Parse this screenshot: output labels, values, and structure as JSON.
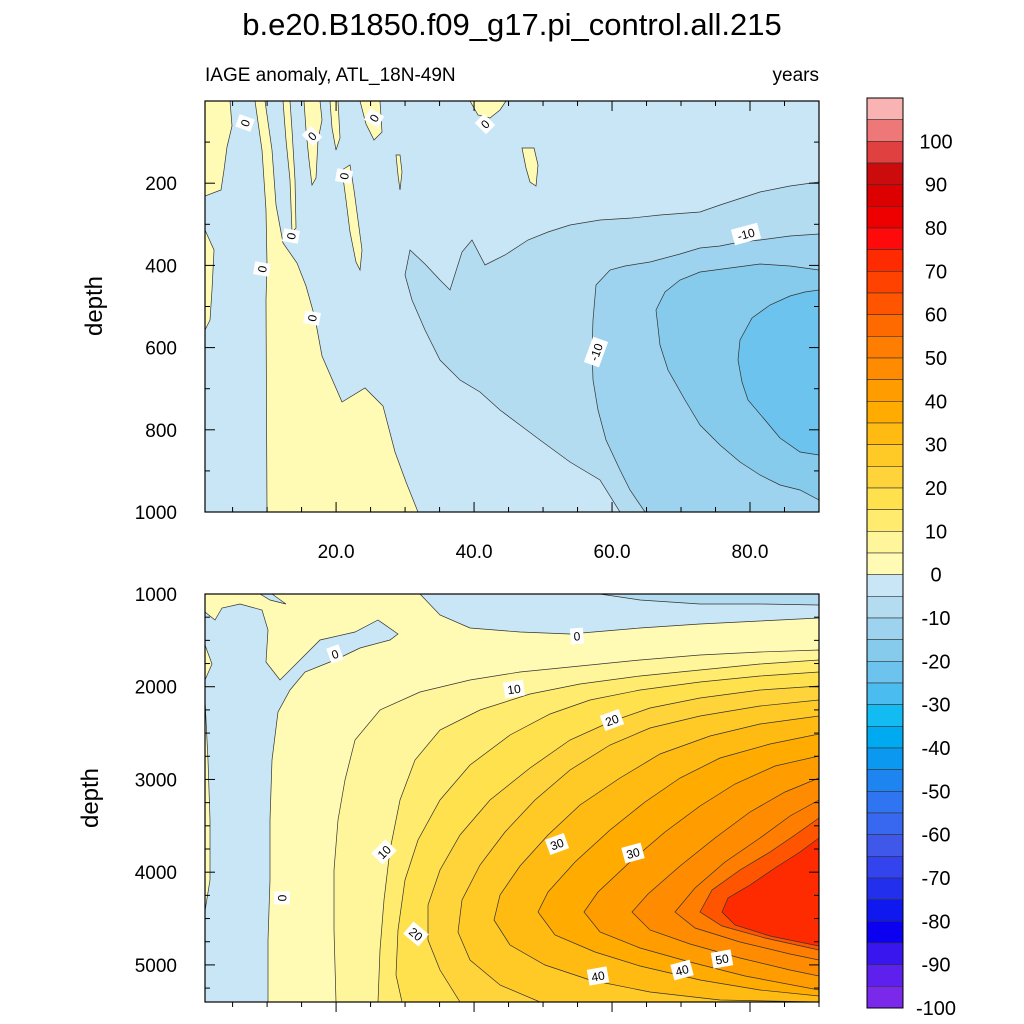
{
  "chart_data": {
    "title": "b.e20.B1850.f09_g17.pi_control.all.215",
    "subtitle_left": "IAGE anomaly, ATL_18N-49N",
    "subtitle_right": "years",
    "type": "contour",
    "x_tick_labels": [
      "20.0",
      "40.0",
      "60.0",
      "80.0"
    ],
    "xlim": [
      1,
      90
    ],
    "panels": [
      {
        "id": "upper",
        "ylabel": "depth",
        "ylim": [
          0,
          1000
        ],
        "y_inverted": true,
        "y_tick_labels": [
          "200",
          "400",
          "600",
          "800",
          "1000"
        ],
        "contour_labels": [
          "0",
          "0",
          "0",
          "0",
          "0",
          "0",
          "0",
          "0",
          "-10",
          "-10"
        ]
      },
      {
        "id": "lower",
        "ylabel": "depth",
        "ylim": [
          1000,
          5400
        ],
        "y_inverted": true,
        "y_tick_labels": [
          "1000",
          "2000",
          "3000",
          "4000",
          "5000"
        ],
        "contour_labels": [
          "0",
          "0",
          "0",
          "10",
          "10",
          "20",
          "20",
          "30",
          "30",
          "40",
          "40",
          "50"
        ]
      }
    ],
    "colorbar": {
      "labels": [
        "100",
        "90",
        "80",
        "70",
        "60",
        "50",
        "40",
        "30",
        "20",
        "10",
        "0",
        "-10",
        "-20",
        "-30",
        "-40",
        "-50",
        "-60",
        "-70",
        "-80",
        "-90",
        "-100"
      ],
      "colors": [
        "#f9b3b3",
        "#ee7878",
        "#e04040",
        "#cc0c0c",
        "#dd0000",
        "#ee0000",
        "#ff0a0a",
        "#ff2b00",
        "#ff4200",
        "#ff5500",
        "#ff6a00",
        "#ff7d00",
        "#ff8c00",
        "#ff9c00",
        "#ffab00",
        "#ffbb11",
        "#ffc926",
        "#ffd43a",
        "#ffe14e",
        "#ffec6e",
        "#fff59a",
        "#fffab4",
        "#c8e6f5",
        "#b4dcf1",
        "#9dd3ee",
        "#86cbeb",
        "#6cc4ee",
        "#4bbcf0",
        "#12bcf2",
        "#00aaf0",
        "#0b98f0",
        "#1e85f0",
        "#2f74f0",
        "#3868f0",
        "#3f58ea",
        "#3344ee",
        "#2230ee",
        "#1018f0",
        "#0c00f0",
        "#3a16ee",
        "#5e20ec",
        "#7a28ea"
      ]
    }
  }
}
